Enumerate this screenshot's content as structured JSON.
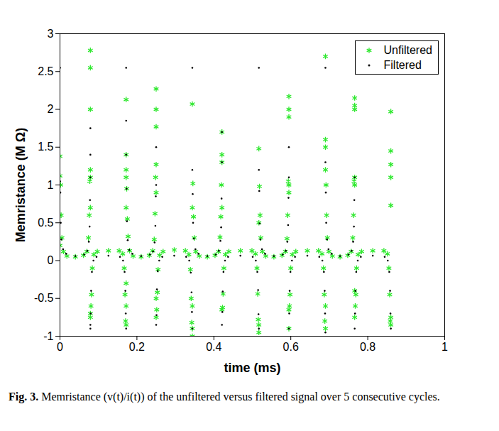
{
  "chart_data": {
    "type": "scatter",
    "x_label": "time (ms)",
    "y_label": "Memristance (M Ω)",
    "caption": {
      "label": "Fig. 3.",
      "text": "Memristance (v(t)/i(t)) of the unfiltered versus filtered signal over 5 consecutive cycles."
    },
    "xlim": [
      0,
      1
    ],
    "xticks": [
      0,
      0.2,
      0.4,
      0.6,
      0.8,
      1
    ],
    "ylim": [
      -1,
      3
    ],
    "yticks": [
      -1,
      -0.5,
      0,
      0.5,
      1,
      1.5,
      2,
      2.5,
      3
    ],
    "grid": false,
    "legend": "upper right",
    "series": [
      {
        "name": "Unfiltered",
        "color": "#2ee82e",
        "marker": "asterisk",
        "x": [
          0,
          0,
          0,
          0.0015,
          0.003,
          0.005,
          0.009,
          0.018,
          0.04,
          0.061,
          0.07,
          0.074,
          0.076,
          0.0775,
          0.079,
          0.079,
          0.079,
          0.079,
          0.079,
          0.079,
          0.079,
          0.079,
          0.0805,
          0.082,
          0.084,
          0.088,
          0.097,
          0.126,
          0.154,
          0.163,
          0.167,
          0.169,
          0.1705,
          0.172,
          0.172,
          0.172,
          0.172,
          0.172,
          0.172,
          0.172,
          0.172,
          0.1735,
          0.175,
          0.177,
          0.181,
          0.19,
          0.211,
          0.232,
          0.241,
          0.245,
          0.247,
          0.2485,
          0.25,
          0.25,
          0.25,
          0.25,
          0.25,
          0.25,
          0.25,
          0.2515,
          0.253,
          0.255,
          0.259,
          0.268,
          0.297,
          0.326,
          0.335,
          0.339,
          0.341,
          0.3425,
          0.344,
          0.344,
          0.344,
          0.344,
          0.344,
          0.3455,
          0.347,
          0.349,
          0.353,
          0.362,
          0.383,
          0.403,
          0.412,
          0.416,
          0.418,
          0.4195,
          0.421,
          0.421,
          0.421,
          0.421,
          0.421,
          0.4225,
          0.424,
          0.426,
          0.43,
          0.439,
          0.469,
          0.499,
          0.508,
          0.512,
          0.514,
          0.5155,
          0.517,
          0.517,
          0.517,
          0.517,
          0.5185,
          0.52,
          0.522,
          0.526,
          0.535,
          0.556,
          0.577,
          0.586,
          0.59,
          0.592,
          0.5935,
          0.595,
          0.595,
          0.595,
          0.595,
          0.595,
          0.595,
          0.595,
          0.5965,
          0.598,
          0.6,
          0.604,
          0.613,
          0.643,
          0.672,
          0.681,
          0.685,
          0.687,
          0.6885,
          0.69,
          0.69,
          0.69,
          0.69,
          0.69,
          0.69,
          0.6915,
          0.693,
          0.695,
          0.699,
          0.708,
          0.728,
          0.748,
          0.757,
          0.761,
          0.763,
          0.7645,
          0.766,
          0.766,
          0.766,
          0.766,
          0.766,
          0.766,
          0.766,
          0.7675,
          0.769,
          0.771,
          0.775,
          0.784,
          0.813,
          0.842,
          0.851,
          0.855,
          0.857,
          0.8585,
          0.86,
          0.86,
          0.86,
          0.86,
          0.86,
          0.86,
          0.86
        ],
        "values": [
          1.38,
          1.12,
          0.2,
          1.0,
          0.6,
          0.3,
          0.12,
          0.06,
          0.05,
          0.07,
          0.12,
          0.3,
          0.6,
          1.05,
          2.78,
          2.55,
          2.0,
          1.2,
          1.1,
          0.7,
          -0.7,
          -0.75,
          -0.6,
          -0.45,
          -0.1,
          0.08,
          0.12,
          0.13,
          0.13,
          0.09,
          -0.1,
          -0.45,
          -0.8,
          2.13,
          1.4,
          1.2,
          1.1,
          0.7,
          -0.3,
          -0.6,
          -0.85,
          0.95,
          0.55,
          0.32,
          0.13,
          0.06,
          0.05,
          0.07,
          0.13,
          0.28,
          0.62,
          1.1,
          2.27,
          2.0,
          1.77,
          1.27,
          0.9,
          -0.5,
          -0.75,
          -0.65,
          -0.42,
          -0.12,
          0.07,
          0.12,
          0.14,
          0.13,
          0.08,
          -0.12,
          -0.5,
          -0.82,
          2.07,
          0.7,
          -0.6,
          -0.9,
          -1.0,
          1.02,
          0.58,
          0.3,
          0.12,
          0.06,
          0.05,
          0.07,
          0.12,
          0.31,
          0.58,
          1.0,
          1.7,
          1.4,
          1.3,
          0.7,
          -0.65,
          -0.62,
          -0.44,
          -0.1,
          0.08,
          0.12,
          0.13,
          0.13,
          0.09,
          -0.1,
          -0.44,
          -0.78,
          1.48,
          0.5,
          -0.85,
          -0.95,
          0.98,
          0.6,
          0.3,
          0.12,
          0.06,
          0.05,
          0.07,
          0.12,
          0.29,
          0.6,
          1.05,
          2.17,
          2.0,
          1.9,
          1.0,
          0.9,
          -0.65,
          -0.9,
          -0.6,
          -0.45,
          -0.1,
          0.08,
          0.12,
          0.13,
          0.13,
          0.09,
          -0.1,
          -0.45,
          -0.8,
          2.7,
          1.6,
          1.5,
          1.2,
          -0.6,
          -0.9,
          1.0,
          0.6,
          0.3,
          0.12,
          0.06,
          0.05,
          0.07,
          0.12,
          0.3,
          0.6,
          1.05,
          2.15,
          2.05,
          2.0,
          1.1,
          1.0,
          -0.4,
          -0.75,
          -0.6,
          -0.45,
          -0.1,
          0.08,
          0.12,
          0.13,
          0.13,
          0.09,
          -0.1,
          -0.45,
          -0.8,
          1.97,
          1.45,
          1.27,
          1.1,
          0.73,
          -0.75,
          -0.85
        ]
      },
      {
        "name": "Filtered",
        "color": "#000000",
        "marker": "dot",
        "x": [
          0,
          0,
          0.001,
          0.002,
          0.004,
          0.008,
          0.016,
          0.04,
          0.063,
          0.071,
          0.075,
          0.077,
          0.078,
          0.079,
          0.079,
          0.079,
          0.079,
          0.079,
          0.08,
          0.081,
          0.083,
          0.087,
          0.095,
          0.126,
          0.156,
          0.164,
          0.168,
          0.17,
          0.171,
          0.172,
          0.172,
          0.172,
          0.172,
          0.173,
          0.174,
          0.176,
          0.18,
          0.188,
          0.211,
          0.234,
          0.242,
          0.246,
          0.248,
          0.249,
          0.25,
          0.25,
          0.25,
          0.251,
          0.252,
          0.254,
          0.258,
          0.266,
          0.297,
          0.328,
          0.336,
          0.34,
          0.342,
          0.343,
          0.344,
          0.344,
          0.344,
          0.345,
          0.346,
          0.348,
          0.352,
          0.36,
          0.383,
          0.405,
          0.413,
          0.417,
          0.419,
          0.42,
          0.421,
          0.421,
          0.421,
          0.422,
          0.423,
          0.425,
          0.429,
          0.437,
          0.469,
          0.501,
          0.509,
          0.513,
          0.515,
          0.516,
          0.517,
          0.517,
          0.517,
          0.518,
          0.519,
          0.521,
          0.525,
          0.533,
          0.556,
          0.579,
          0.587,
          0.591,
          0.593,
          0.594,
          0.595,
          0.595,
          0.595,
          0.596,
          0.597,
          0.599,
          0.603,
          0.611,
          0.643,
          0.674,
          0.682,
          0.686,
          0.688,
          0.689,
          0.69,
          0.69,
          0.69,
          0.691,
          0.692,
          0.694,
          0.698,
          0.706,
          0.728,
          0.75,
          0.758,
          0.762,
          0.764,
          0.765,
          0.766,
          0.766,
          0.767,
          0.768,
          0.77,
          0.774,
          0.782,
          0.813,
          0.844,
          0.852,
          0.856,
          0.858,
          0.859,
          0.86
        ],
        "values": [
          2.55,
          1.05,
          0.9,
          0.5,
          0.28,
          0.15,
          0.09,
          0.06,
          0.08,
          0.13,
          0.25,
          0.45,
          0.8,
          1.75,
          1.4,
          1.1,
          -0.9,
          -0.85,
          -0.7,
          -0.4,
          -0.15,
          0,
          0.05,
          0.065,
          0.05,
          0,
          -0.15,
          -0.4,
          -0.7,
          -0.9,
          1.4,
          1.85,
          2.55,
          0.95,
          0.52,
          0.27,
          0.14,
          0.09,
          0.06,
          0.08,
          0.12,
          0.24,
          0.46,
          0.85,
          1.5,
          1.0,
          -0.85,
          -0.72,
          -0.38,
          -0.14,
          0,
          0.05,
          0.065,
          0.05,
          0,
          -0.16,
          -0.42,
          -0.68,
          -0.9,
          1.2,
          2.55,
          0.88,
          0.5,
          0.29,
          0.15,
          0.09,
          0.06,
          0.08,
          0.13,
          0.26,
          0.44,
          0.82,
          1.7,
          1.3,
          -0.85,
          -0.68,
          -0.41,
          -0.15,
          0,
          0.05,
          0.065,
          0.05,
          0,
          -0.15,
          -0.39,
          -0.71,
          -0.9,
          1.2,
          2.55,
          0.92,
          0.49,
          0.28,
          0.15,
          0.09,
          0.06,
          0.08,
          0.13,
          0.25,
          0.47,
          0.83,
          1.5,
          1.1,
          -0.9,
          -0.7,
          -0.4,
          -0.15,
          0,
          0.05,
          0.065,
          0.05,
          0,
          -0.15,
          -0.4,
          -0.7,
          -0.95,
          1.3,
          2.55,
          0.9,
          0.5,
          0.28,
          0.15,
          0.09,
          0.06,
          0.08,
          0.13,
          0.25,
          0.45,
          0.8,
          1.1,
          -0.9,
          -0.7,
          -0.4,
          -0.15,
          0,
          0.05,
          0.065,
          0.05,
          0,
          -0.15,
          -0.4,
          -0.7,
          -0.9
        ]
      }
    ]
  }
}
